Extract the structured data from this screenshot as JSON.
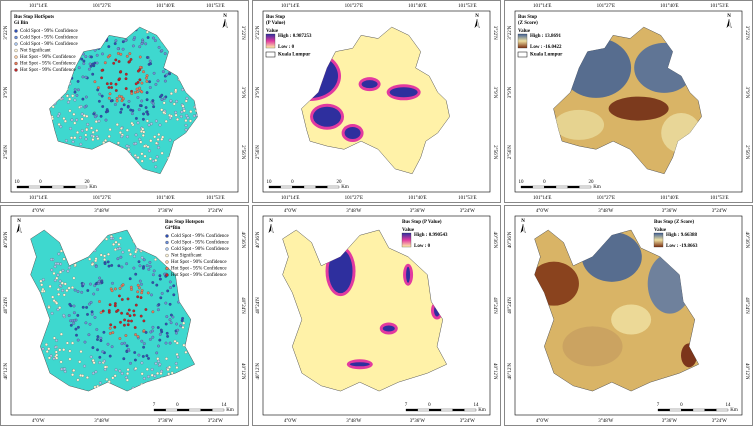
{
  "panels": [
    {
      "kind": "hotspot",
      "top_ticks": [
        "101°14'E",
        "101°27'E",
        "101°40'E",
        "101°53'E"
      ],
      "bottom_ticks": [
        "101°14'E",
        "101°27'E",
        "101°40'E",
        "101°53'E"
      ],
      "left_ticks": [
        "3°22'N",
        "3°9'N",
        "2°56'N"
      ],
      "right_ticks": [
        "3°22'N",
        "3°9'N",
        "2°56'N"
      ],
      "title": [
        "Bus Stop HotSpots",
        "Gi Bin"
      ],
      "legend": [
        "Cold Spot - 99% Confidence",
        "Cold Spot - 95% Confidence",
        "Cold Spot - 90% Confidence",
        "Not Significant",
        "Hot Spot - 90% Confidence",
        "Hot Spot - 95% Confidence",
        "Hot Spot - 99% Confidence"
      ],
      "scale": [
        "10",
        "0",
        "20",
        "Km"
      ],
      "north": "N"
    },
    {
      "kind": "pvalue",
      "top_ticks": [
        "101°14'E",
        "101°27'E",
        "101°40'E",
        "101°53'E"
      ],
      "bottom_ticks": [
        "101°14'E",
        "101°27'E",
        "101°40'E",
        "101°53'E"
      ],
      "left_ticks": [
        "3°22'N",
        "3°9'N",
        "2°56'N"
      ],
      "right_ticks": [
        "3°22'N",
        "3°9'N",
        "2°56'N"
      ],
      "title": [
        "Bus Stop",
        "(P Value)"
      ],
      "value_label": "Value",
      "high": "High : 0.987253",
      "low": "Low : 0",
      "boundary_label": "Kuala Lumpur",
      "scale": [
        "10",
        "0",
        "20",
        "Km"
      ],
      "north": "N"
    },
    {
      "kind": "zscore",
      "top_ticks": [
        "101°14'E",
        "101°27'E",
        "101°40'E",
        "101°53'E"
      ],
      "bottom_ticks": [
        "101°14'E",
        "101°27'E",
        "101°40'E",
        "101°53'E"
      ],
      "left_ticks": [
        "3°22'N",
        "3°9'N",
        "2°56'N"
      ],
      "right_ticks": [
        "3°22'N",
        "3°9'N",
        "2°56'N"
      ],
      "title": [
        "Bus Stop",
        "(Z Score)"
      ],
      "value_label": "Value",
      "high": "High : 13.8691",
      "low": "Low : -16.0422",
      "boundary_label": "Kuala Lumpur",
      "scale": [
        "10",
        "0",
        "20",
        "Km"
      ],
      "north": "N"
    },
    {
      "kind": "hotspot",
      "top_ticks": [
        "4°0'W",
        "3°48'W",
        "3°36'W",
        "3°24'W"
      ],
      "bottom_ticks": [
        "4°0'W",
        "3°48'W",
        "3°36'W",
        "3°24'W"
      ],
      "left_ticks": [
        "40°36'N",
        "40°24'N",
        "40°12'N"
      ],
      "right_ticks": [
        "40°36'N",
        "40°24'N",
        "40°12'N"
      ],
      "title": [
        "Bus Stop Hotspots",
        "Gi*Bin"
      ],
      "legend": [
        "Cold Spot - 99% Confidence",
        "Cold Spot - 95% Confidence",
        "Cold Spot - 90% Confidence",
        "Not Significant",
        "Hot Spot - 90% Confidence",
        "Hot Spot - 95% Confidence",
        "Hot Spot - 99% Confidence"
      ],
      "scale": [
        "7",
        "0",
        "14",
        "Km"
      ],
      "north": "N"
    },
    {
      "kind": "pvalue",
      "top_ticks": [
        "4°0'W",
        "3°48'W",
        "3°36'W",
        "3°24'W"
      ],
      "bottom_ticks": [
        "4°0'W",
        "3°48'W",
        "3°36'W",
        "3°24'W"
      ],
      "left_ticks": [
        "40°36'N",
        "40°24'N",
        "40°12'N"
      ],
      "right_ticks": [
        "40°36'N",
        "40°24'N",
        "40°12'N"
      ],
      "title": [
        "Bus Stop (P Value)"
      ],
      "value_label": "Value",
      "high": "High : 0.990543",
      "low": "Low : 0",
      "scale": [
        "7",
        "0",
        "14",
        "Km"
      ],
      "north": "N"
    },
    {
      "kind": "zscore",
      "top_ticks": [
        "4°0'W",
        "3°48'W",
        "3°36'W",
        "3°24'W"
      ],
      "bottom_ticks": [
        "4°0'W",
        "3°48'W",
        "3°36'W",
        "3°24'W"
      ],
      "left_ticks": [
        "40°36'N",
        "40°24'N",
        "40°12'N"
      ],
      "right_ticks": [
        "40°36'N",
        "40°24'N",
        "40°12'N"
      ],
      "title": [
        "Bus Stop (Z Score)"
      ],
      "value_label": "Value",
      "high": "High : 9.66388",
      "low": "Low : -19.8663",
      "scale": [
        "7",
        "0",
        "14",
        "Km"
      ],
      "north": "N"
    }
  ]
}
